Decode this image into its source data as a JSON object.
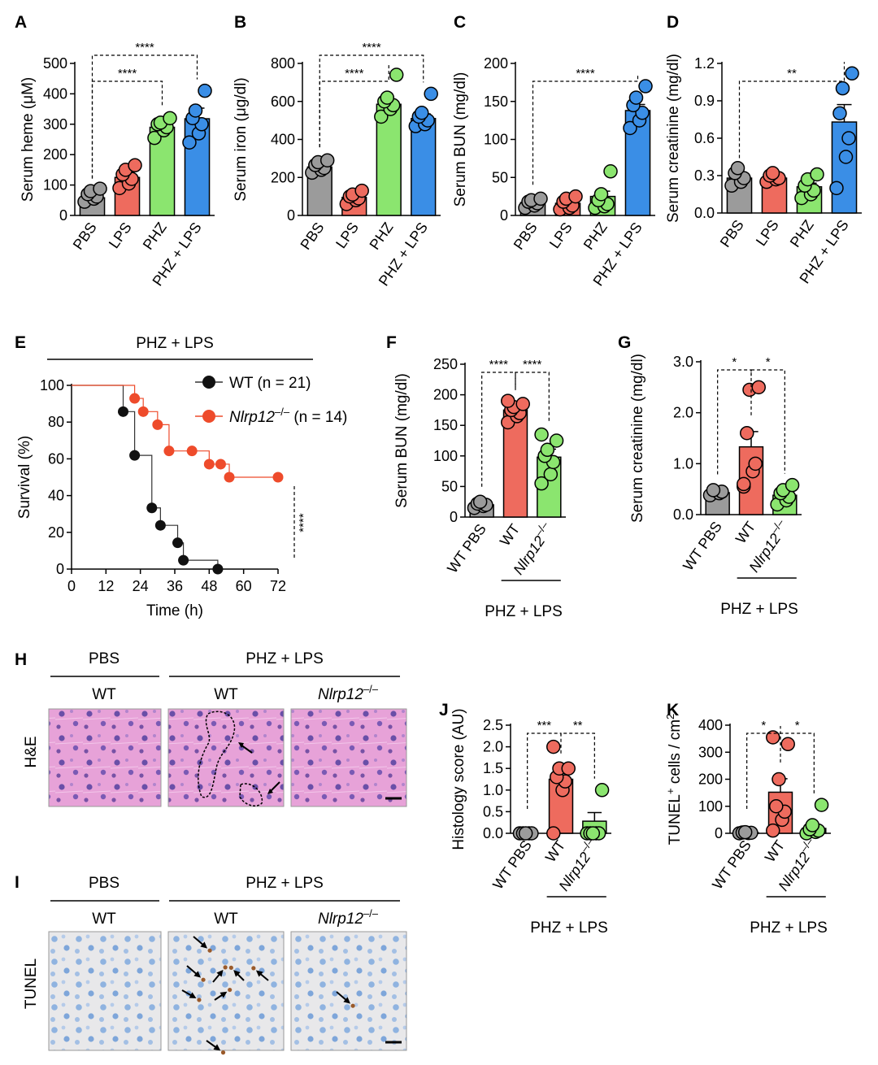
{
  "colors": {
    "PBS": "#9b9b9b",
    "LPS": "#ee6b5e",
    "PHZ": "#8be56f",
    "PHZ_LPS": "#3a8ee6",
    "WT_line": "#111111",
    "KO_line": "#ee4b2b"
  },
  "chart_data": [
    {
      "id": "A",
      "type": "bar",
      "panel": "A",
      "categories": [
        "PBS",
        "LPS",
        "PHZ",
        "PHZ + LPS"
      ],
      "ylabel": "Serum heme (μM)",
      "ylim": [
        0,
        500
      ],
      "yticks": [
        "0",
        "100",
        "200",
        "300",
        "400",
        "500"
      ],
      "values": [
        58,
        125,
        290,
        318
      ],
      "sem": [
        10,
        15,
        18,
        35
      ],
      "points": [
        [
          45,
          55,
          62,
          70,
          80,
          88
        ],
        [
          90,
          105,
          120,
          135,
          150,
          165
        ],
        [
          255,
          280,
          290,
          300,
          305,
          320
        ],
        [
          240,
          270,
          300,
          320,
          345,
          410
        ]
      ],
      "brackets": [
        {
          "from": 0,
          "to": 2,
          "label": "****"
        },
        {
          "from": 0,
          "to": 3,
          "label": "****"
        }
      ]
    },
    {
      "id": "B",
      "type": "bar",
      "panel": "B",
      "categories": [
        "PBS",
        "LPS",
        "PHZ",
        "PHZ + LPS"
      ],
      "ylabel": "Serum iron (μg/dl)",
      "ylim": [
        0,
        800
      ],
      "yticks": [
        "0",
        "200",
        "400",
        "600",
        "800"
      ],
      "values": [
        255,
        95,
        585,
        510
      ],
      "sem": [
        18,
        10,
        25,
        25
      ],
      "points": [
        [
          225,
          240,
          250,
          265,
          280,
          290
        ],
        [
          60,
          80,
          90,
          100,
          110,
          130
        ],
        [
          520,
          560,
          580,
          600,
          620,
          740
        ],
        [
          470,
          480,
          500,
          520,
          540,
          640
        ]
      ],
      "brackets": [
        {
          "from": 0,
          "to": 2,
          "label": "****"
        },
        {
          "from": 0,
          "to": 3,
          "label": "****"
        }
      ]
    },
    {
      "id": "C",
      "type": "bar",
      "panel": "C",
      "categories": [
        "PBS",
        "LPS",
        "PHZ",
        "PHZ + LPS"
      ],
      "ylabel": "Serum BUN (mg/dl)",
      "ylim": [
        0,
        200
      ],
      "yticks": [
        "0",
        "50",
        "100",
        "150",
        "200"
      ],
      "values": [
        17,
        16,
        25,
        138
      ],
      "sem": [
        2,
        3,
        7,
        8
      ],
      "points": [
        [
          10,
          13,
          16,
          18,
          20,
          22
        ],
        [
          8,
          10,
          13,
          18,
          22,
          25
        ],
        [
          10,
          12,
          15,
          20,
          28,
          58
        ],
        [
          115,
          125,
          135,
          145,
          155,
          170
        ]
      ],
      "brackets": [
        {
          "from": 0,
          "to": 3,
          "label": "****"
        }
      ]
    },
    {
      "id": "D",
      "type": "bar",
      "panel": "D",
      "categories": [
        "PBS",
        "LPS",
        "PHZ",
        "PHZ + LPS"
      ],
      "ylabel": "Serum creatinine (mg/dl)",
      "ylim": [
        0,
        1.2
      ],
      "yticks": [
        "0.0",
        "0.3",
        "0.6",
        "0.9",
        "1.2"
      ],
      "values": [
        0.28,
        0.28,
        0.21,
        0.73
      ],
      "sem": [
        0.03,
        0.02,
        0.03,
        0.14
      ],
      "points": [
        [
          0.22,
          0.25,
          0.28,
          0.32,
          0.36
        ],
        [
          0.25,
          0.27,
          0.28,
          0.3,
          0.32
        ],
        [
          0.12,
          0.15,
          0.18,
          0.22,
          0.27,
          0.31
        ],
        [
          0.2,
          0.45,
          0.6,
          0.8,
          1.0,
          1.12
        ]
      ],
      "brackets": [
        {
          "from": 0,
          "to": 3,
          "label": "**"
        }
      ]
    },
    {
      "id": "E",
      "type": "line",
      "panel": "E",
      "title": "PHZ + LPS",
      "xlabel": "Time (h)",
      "ylabel": "Survival (%)",
      "xlim": [
        0,
        72
      ],
      "ylim": [
        0,
        100
      ],
      "xticks": [
        "0",
        "12",
        "24",
        "36",
        "48",
        "60",
        "72"
      ],
      "yticks": [
        "0",
        "20",
        "40",
        "60",
        "80",
        "100"
      ],
      "series": [
        {
          "name": "WT (n = 21)",
          "x": [
            0,
            18,
            22,
            28,
            31,
            37,
            39,
            51
          ],
          "y": [
            100,
            85.7,
            61.9,
            33.3,
            23.8,
            14.3,
            4.8,
            0
          ]
        },
        {
          "name_italic": "Nlrp12",
          "name_sup": "–/–",
          "name_rest": " (n = 14)",
          "x": [
            0,
            22,
            25,
            30,
            34,
            42,
            48,
            52,
            55,
            72
          ],
          "y": [
            100,
            92.9,
            85.7,
            78.6,
            64.3,
            64.3,
            57.1,
            57.1,
            50,
            50
          ]
        }
      ],
      "significance": "****"
    },
    {
      "id": "F",
      "type": "bar",
      "panel": "F",
      "categories": [
        "WT PBS",
        "WT",
        "Nlrp12"
      ],
      "cat_sup": "–/–",
      "group_label": "PHZ + LPS",
      "ylabel": "Serum BUN (mg/dl)",
      "ylim": [
        0,
        250
      ],
      "yticks": [
        "0",
        "50",
        "100",
        "150",
        "200",
        "250"
      ],
      "values": [
        20,
        175,
        98
      ],
      "sem": [
        3,
        6,
        13
      ],
      "points": [
        [
          15,
          18,
          20,
          22,
          25
        ],
        [
          155,
          165,
          170,
          175,
          180,
          185,
          190
        ],
        [
          55,
          70,
          90,
          100,
          110,
          125,
          135
        ]
      ],
      "brackets": [
        {
          "from": 0,
          "to": 1,
          "label": "****"
        },
        {
          "from": 1,
          "to": 2,
          "label": "****"
        }
      ]
    },
    {
      "id": "G",
      "type": "bar",
      "panel": "G",
      "categories": [
        "WT PBS",
        "WT",
        "Nlrp12"
      ],
      "cat_sup": "–/–",
      "group_label": "PHZ + LPS",
      "ylabel": "Serum creatinine (mg/dl)",
      "ylim": [
        0,
        3.0
      ],
      "yticks": [
        "0.0",
        "1.0",
        "2.0",
        "3.0"
      ],
      "values": [
        0.43,
        1.33,
        0.38
      ],
      "sem": [
        0.04,
        0.3,
        0.08
      ],
      "points": [
        [
          0.38,
          0.42,
          0.45,
          0.48
        ],
        [
          0.55,
          0.85,
          1.0,
          1.6,
          2.45,
          2.5,
          0.6
        ],
        [
          0.2,
          0.28,
          0.35,
          0.42,
          0.48,
          0.58
        ]
      ],
      "brackets": [
        {
          "from": 0,
          "to": 1,
          "label": "*"
        },
        {
          "from": 1,
          "to": 2,
          "label": "*"
        }
      ]
    },
    {
      "id": "J",
      "type": "bar",
      "panel": "J",
      "categories": [
        "WT PBS",
        "WT",
        "Nlrp12"
      ],
      "cat_sup": "–/–",
      "group_label": "PHZ + LPS",
      "ylabel": "Histology score (AU)",
      "ylim": [
        0,
        2.5
      ],
      "yticks": [
        "0.0",
        "0.5",
        "1.0",
        "1.5",
        "2.0",
        "2.5"
      ],
      "values": [
        0,
        1.25,
        0.28
      ],
      "sem": [
        0,
        0.22,
        0.2
      ],
      "points": [
        [
          0,
          0,
          0,
          0,
          0
        ],
        [
          0,
          1.0,
          1.2,
          1.3,
          1.5,
          1.5,
          2.0
        ],
        [
          0,
          0,
          0,
          0,
          0,
          1.0
        ]
      ],
      "brackets": [
        {
          "from": 0,
          "to": 1,
          "label": "***"
        },
        {
          "from": 1,
          "to": 2,
          "label": "**"
        }
      ]
    },
    {
      "id": "K",
      "type": "bar",
      "panel": "K",
      "categories": [
        "WT PBS",
        "WT",
        "Nlrp12"
      ],
      "cat_sup": "–/–",
      "group_label": "PHZ + LPS",
      "ylabel_pre": "TUNEL",
      "ylabel_sup": "+",
      "ylabel_post": " cells / cm",
      "ylabel_sup2": "2",
      "ylim": [
        0,
        400
      ],
      "yticks": [
        "0",
        "100",
        "200",
        "300",
        "400"
      ],
      "values": [
        2,
        152,
        18
      ],
      "sem": [
        1,
        50,
        12
      ],
      "points": [
        [
          0,
          1,
          2,
          3,
          4
        ],
        [
          10,
          50,
          80,
          100,
          200,
          330,
          355
        ],
        [
          0,
          5,
          10,
          15,
          30,
          105
        ]
      ],
      "brackets": [
        {
          "from": 0,
          "to": 1,
          "label": "*"
        },
        {
          "from": 1,
          "to": 2,
          "label": "*"
        }
      ]
    }
  ],
  "histology": {
    "H": {
      "letter": "H",
      "group1": "PBS",
      "group2": "PHZ + LPS",
      "cols": [
        "WT",
        "WT",
        "Nlrp12"
      ],
      "sup": "–/–",
      "row_label": "H&E"
    },
    "I": {
      "letter": "I",
      "group1": "PBS",
      "group2": "PHZ + LPS",
      "cols": [
        "WT",
        "WT",
        "Nlrp12"
      ],
      "sup": "–/–",
      "row_label": "TUNEL"
    }
  }
}
